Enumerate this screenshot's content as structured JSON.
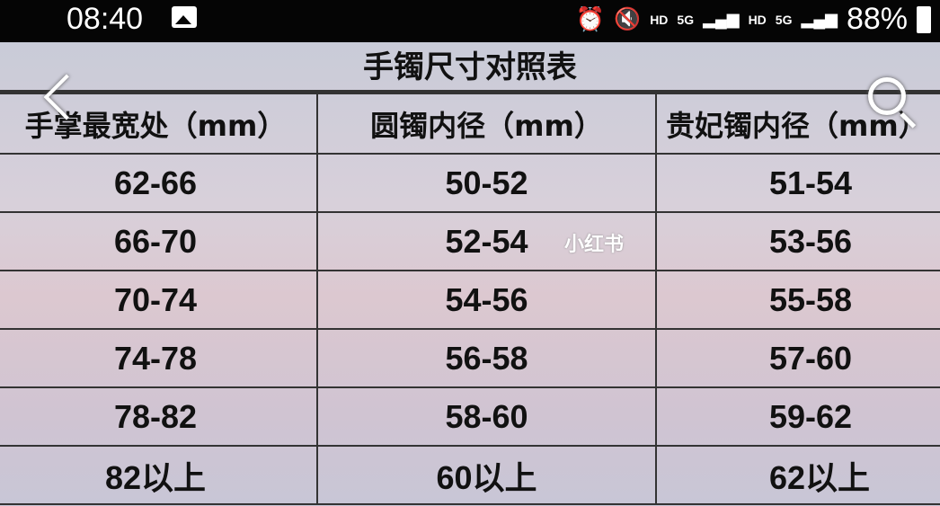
{
  "status_bar": {
    "time": "08:40",
    "icons": [
      "gallery-icon",
      "alarm-icon",
      "mute-icon",
      "signal-icon",
      "signal-icon",
      "battery-icon"
    ],
    "hd1": "HD",
    "net1": "5G",
    "hd2": "HD",
    "net2": "5G",
    "battery": "88%"
  },
  "image": {
    "title": "手镯尺寸对照表",
    "headers": [
      "手掌最宽处（mm）",
      "圆镯内径（mm）",
      "贵妃镯内径（mm）"
    ],
    "rows": [
      [
        "62-66",
        "50-52",
        "51-54"
      ],
      [
        "66-70",
        "52-54",
        "53-56"
      ],
      [
        "70-74",
        "54-56",
        "55-58"
      ],
      [
        "74-78",
        "56-58",
        "57-60"
      ],
      [
        "78-82",
        "58-60",
        "59-62"
      ],
      [
        "82以上",
        "60以上",
        "62以上"
      ]
    ],
    "watermark": "小红书"
  }
}
